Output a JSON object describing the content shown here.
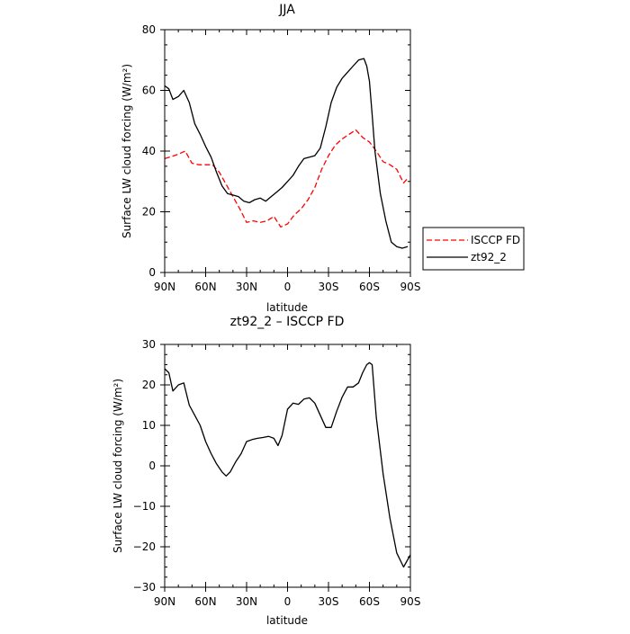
{
  "chart_data": [
    {
      "type": "line",
      "title": "JJA",
      "xlabel": "latitude",
      "ylabel": "Surface LW cloud forcing (W/m²)",
      "ylim": [
        0,
        80
      ],
      "xlim": [
        90,
        -90
      ],
      "x_ticks": [
        90,
        60,
        30,
        0,
        -30,
        -60,
        -90
      ],
      "x_tick_labels": [
        "90N",
        "60N",
        "30N",
        "0",
        "30S",
        "60S",
        "90S"
      ],
      "y_ticks": [
        0,
        20,
        40,
        60,
        80
      ],
      "y_tick_labels": [
        "0",
        "20",
        "40",
        "60",
        "80"
      ],
      "grid": false,
      "legend": {
        "placement": "right",
        "entries": [
          {
            "name": "ISCCP FD",
            "color": "#ff0000",
            "dash": "dashed"
          },
          {
            "name": "zt92_2",
            "color": "#000000",
            "dash": "solid"
          }
        ]
      },
      "series": [
        {
          "name": "ISCCP FD",
          "color": "#ff0000",
          "dash": "dashed",
          "x": [
            90,
            85,
            80,
            75,
            70,
            65,
            60,
            55,
            50,
            45,
            40,
            35,
            30,
            25,
            20,
            15,
            10,
            5,
            0,
            -5,
            -10,
            -15,
            -20,
            -25,
            -30,
            -35,
            -40,
            -45,
            -50,
            -55,
            -60,
            -65,
            -70,
            -75,
            -80,
            -85,
            -88
          ],
          "y": [
            37.5,
            38.2,
            39.0,
            40.0,
            36.0,
            35.5,
            35.5,
            35.5,
            33.0,
            29.0,
            25.0,
            21.0,
            16.5,
            17.0,
            16.5,
            17.0,
            18.5,
            15.0,
            16.0,
            19.0,
            21.0,
            24.0,
            28.0,
            34.0,
            38.5,
            42.0,
            44.0,
            45.5,
            47.0,
            44.5,
            43.0,
            40.0,
            36.5,
            35.5,
            34.0,
            29.5,
            31.0
          ]
        },
        {
          "name": "zt92_2",
          "color": "#000000",
          "dash": "solid",
          "x": [
            90,
            87,
            84,
            80,
            76,
            72,
            68,
            64,
            60,
            56,
            52,
            48,
            44,
            40,
            36,
            32,
            28,
            24,
            20,
            16,
            12,
            8,
            4,
            0,
            -4,
            -8,
            -12,
            -16,
            -20,
            -24,
            -28,
            -32,
            -36,
            -40,
            -44,
            -48,
            -52,
            -56,
            -58,
            -60,
            -62,
            -64,
            -68,
            -72,
            -76,
            -80,
            -84,
            -88
          ],
          "y": [
            61.5,
            60.5,
            57.0,
            58.0,
            60.0,
            56.0,
            49.0,
            45.5,
            41.5,
            38.0,
            33.0,
            28.5,
            26.0,
            25.5,
            25.0,
            23.5,
            23.0,
            24.0,
            24.5,
            23.5,
            25.0,
            26.5,
            28.0,
            30.0,
            32.0,
            35.0,
            37.5,
            38.0,
            38.5,
            41.0,
            48.0,
            56.0,
            61.0,
            64.0,
            66.0,
            68.0,
            70.0,
            70.5,
            68.0,
            63.0,
            52.0,
            40.0,
            26.0,
            17.0,
            10.0,
            8.5,
            8.0,
            8.5
          ]
        }
      ]
    },
    {
      "type": "line",
      "title": "zt92_2 – ISCCP FD",
      "xlabel": "latitude",
      "ylabel": "Surface LW cloud forcing (W/m²)",
      "ylim": [
        -30,
        30
      ],
      "xlim": [
        90,
        -90
      ],
      "x_ticks": [
        90,
        60,
        30,
        0,
        -30,
        -60,
        -90
      ],
      "x_tick_labels": [
        "90N",
        "60N",
        "30N",
        "0",
        "30S",
        "60S",
        "90S"
      ],
      "y_ticks": [
        -30,
        -20,
        -10,
        0,
        10,
        20,
        30
      ],
      "y_tick_labels": [
        "−30",
        "−20",
        "−10",
        "0",
        "10",
        "20",
        "30"
      ],
      "grid": false,
      "series": [
        {
          "color": "#000000",
          "dash": "solid",
          "x": [
            90,
            87,
            84,
            80,
            76,
            72,
            68,
            64,
            60,
            56,
            52,
            48,
            45,
            42,
            38,
            34,
            30,
            26,
            22,
            18,
            14,
            10,
            7,
            4,
            0,
            -4,
            -8,
            -12,
            -16,
            -20,
            -24,
            -28,
            -32,
            -36,
            -40,
            -44,
            -48,
            -52,
            -55,
            -58,
            -60,
            -62,
            -65,
            -70,
            -75,
            -80,
            -85,
            -90
          ],
          "y": [
            24.0,
            23.0,
            18.5,
            20.0,
            20.5,
            15.0,
            12.5,
            10.0,
            6.0,
            3.0,
            0.5,
            -1.5,
            -2.5,
            -1.5,
            1.0,
            3.0,
            6.0,
            6.5,
            6.8,
            7.0,
            7.3,
            6.8,
            5.0,
            7.5,
            14.0,
            15.5,
            15.2,
            16.5,
            16.8,
            15.5,
            12.5,
            9.5,
            9.5,
            13.5,
            17.0,
            19.5,
            19.5,
            20.5,
            23.0,
            25.0,
            25.5,
            25.0,
            12.0,
            -2.0,
            -13.0,
            -21.5,
            -25.0,
            -22.0
          ]
        }
      ]
    }
  ]
}
